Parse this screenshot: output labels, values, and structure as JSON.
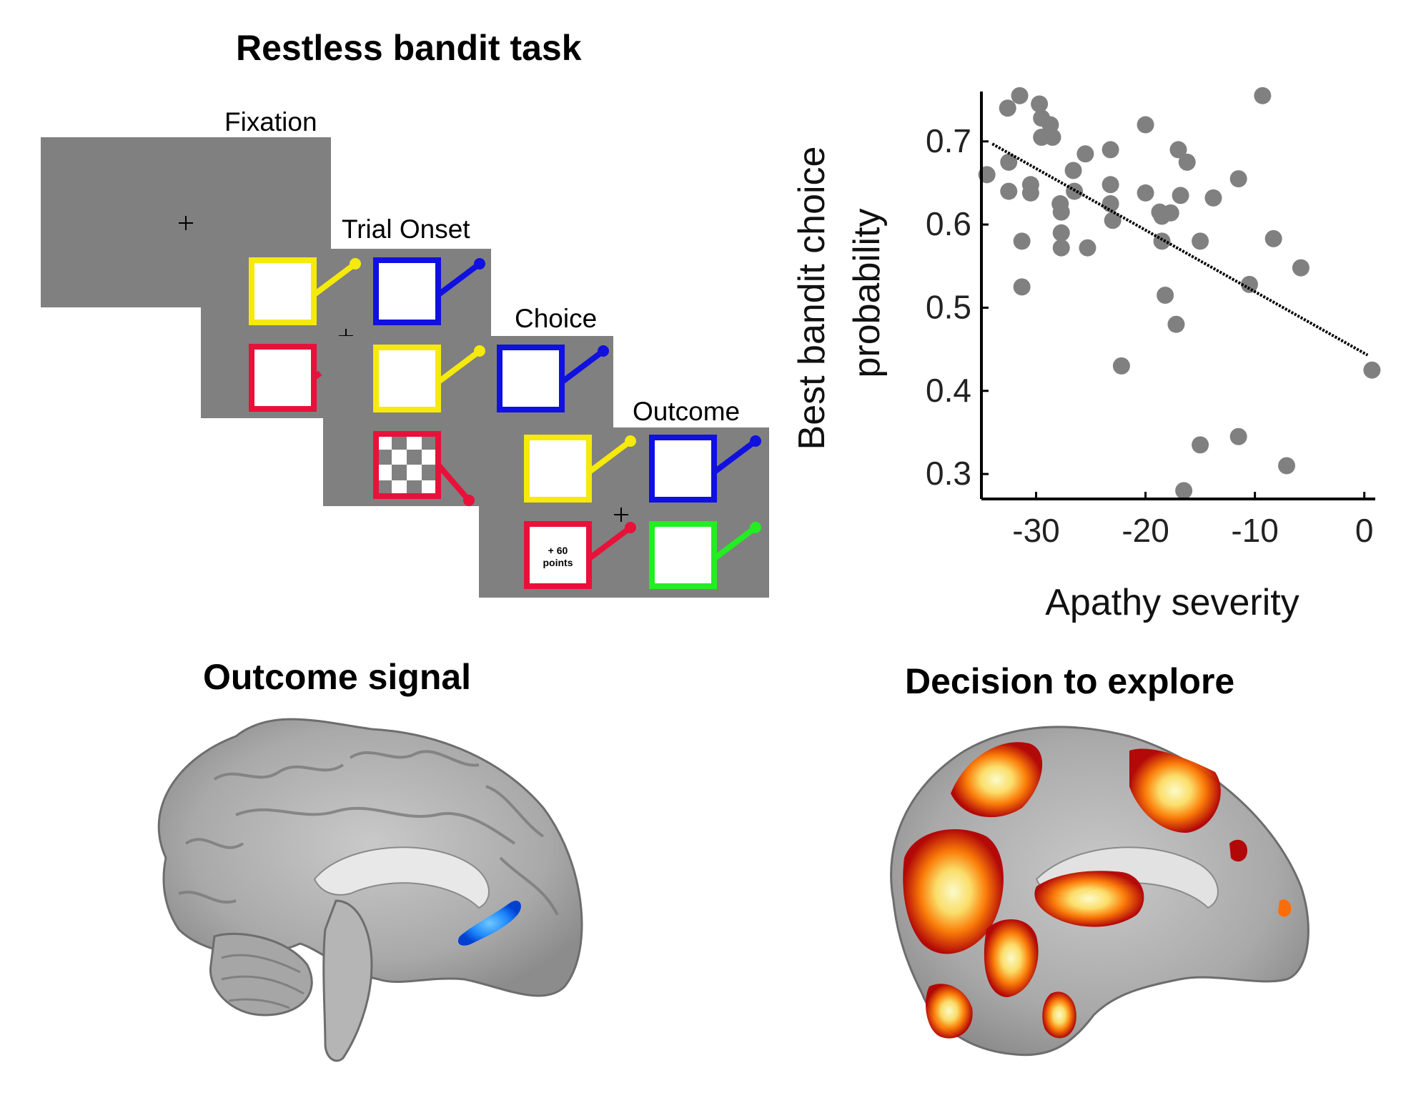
{
  "panels": {
    "task": {
      "title": "Restless bandit task",
      "stages": {
        "fixation": "Fixation",
        "trial_onset": "Trial Onset",
        "choice": "Choice",
        "outcome": "Outcome"
      },
      "outcome_text_line1": "+ 60",
      "outcome_text_line2": "points",
      "bandit_colors": {
        "yellow": "#f5ea0c",
        "blue": "#1010e0",
        "red": "#e8113a",
        "green": "#22ee22"
      },
      "screen_color": "#808080"
    },
    "outcome_signal": {
      "title": "Outcome signal",
      "activation_color": "#1e88ff"
    },
    "explore": {
      "title": "Decision to explore",
      "activation_colors": [
        "#b30000",
        "#ff6a00",
        "#ffd000",
        "#ffffcc"
      ]
    }
  },
  "chart_data": {
    "type": "scatter",
    "title": "",
    "xlabel": "Apathy severity",
    "ylabel_line1": "Best bandit choice",
    "ylabel_line2": "probability",
    "xlim": [
      -35,
      1
    ],
    "ylim": [
      0.27,
      0.76
    ],
    "xticks": [
      -30,
      -20,
      -10,
      0
    ],
    "xtick_labels": [
      "-30",
      "-20",
      "-10",
      "0"
    ],
    "yticks": [
      0.3,
      0.4,
      0.5,
      0.6,
      0.7
    ],
    "ytick_labels": [
      "0.3",
      "0.4",
      "0.5",
      "0.6",
      "0.7"
    ],
    "grid": false,
    "marker_color": "#808080",
    "fit_line": {
      "style": "dotted",
      "color": "#000000",
      "x": [
        -34,
        0.3
      ],
      "y": [
        0.697,
        0.443
      ]
    },
    "points": [
      [
        -34.5,
        0.66
      ],
      [
        -32.6,
        0.74
      ],
      [
        -32.5,
        0.675
      ],
      [
        -32.5,
        0.64
      ],
      [
        -31.5,
        0.755
      ],
      [
        -31.3,
        0.58
      ],
      [
        -31.3,
        0.525
      ],
      [
        -30.5,
        0.648
      ],
      [
        -30.5,
        0.638
      ],
      [
        -29.7,
        0.745
      ],
      [
        -29.5,
        0.728
      ],
      [
        -29.5,
        0.705
      ],
      [
        -28.7,
        0.72
      ],
      [
        -28.5,
        0.705
      ],
      [
        -27.8,
        0.625
      ],
      [
        -27.7,
        0.615
      ],
      [
        -27.7,
        0.59
      ],
      [
        -27.7,
        0.572
      ],
      [
        -26.6,
        0.665
      ],
      [
        -26.5,
        0.64
      ],
      [
        -25.5,
        0.685
      ],
      [
        -25.3,
        0.572
      ],
      [
        -23.2,
        0.69
      ],
      [
        -23.2,
        0.648
      ],
      [
        -23.2,
        0.625
      ],
      [
        -23.0,
        0.605
      ],
      [
        -22.2,
        0.43
      ],
      [
        -20.0,
        0.72
      ],
      [
        -20.0,
        0.638
      ],
      [
        -18.7,
        0.615
      ],
      [
        -18.5,
        0.61
      ],
      [
        -18.5,
        0.58
      ],
      [
        -18.2,
        0.515
      ],
      [
        -17.7,
        0.614
      ],
      [
        -17.2,
        0.48
      ],
      [
        -17.0,
        0.69
      ],
      [
        -16.8,
        0.635
      ],
      [
        -16.2,
        0.675
      ],
      [
        -15.0,
        0.58
      ],
      [
        -15.0,
        0.335
      ],
      [
        -13.8,
        0.632
      ],
      [
        -11.5,
        0.655
      ],
      [
        -11.5,
        0.345
      ],
      [
        -10.5,
        0.528
      ],
      [
        -9.3,
        0.755
      ],
      [
        -8.3,
        0.583
      ],
      [
        -7.1,
        0.31
      ],
      [
        -5.8,
        0.548
      ],
      [
        0.7,
        0.425
      ],
      [
        -16.5,
        0.28
      ]
    ]
  }
}
